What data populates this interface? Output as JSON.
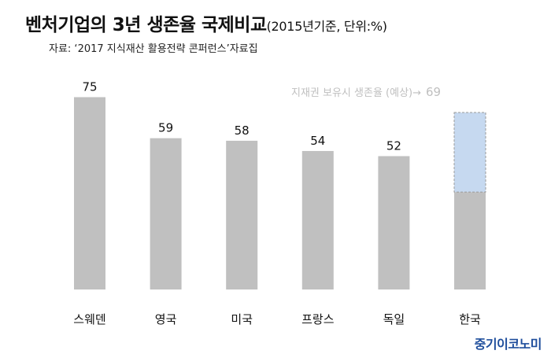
{
  "header": {
    "title": "벤처기업의 3년 생존율 국제비교",
    "subtitle": "(2015년기준, 단위:%)",
    "source": "자료: ‘2017 지식재산 활용전략 콘퍼런스’자료집"
  },
  "brand": "중기이코노미",
  "chart_data": {
    "type": "bar",
    "title": "벤처기업의 3년 생존율 국제비교",
    "subtitle": "(2015년기준, 단위:%)",
    "categories": [
      "스웨덴",
      "영국",
      "미국",
      "프랑스",
      "독일",
      "한국"
    ],
    "values": [
      75,
      59,
      58,
      54,
      52,
      38
    ],
    "ylim": [
      0,
      80
    ],
    "grid": false,
    "annotation": {
      "category": "한국",
      "label": "지재권 보유시 생존율 (예상)→",
      "value": 69
    },
    "colors": {
      "bar": "#c0c0c0",
      "projected_fill": "#c6d9f0",
      "projected_border": "#9a9a9a",
      "annotation_text": "#bfbfbf"
    }
  }
}
